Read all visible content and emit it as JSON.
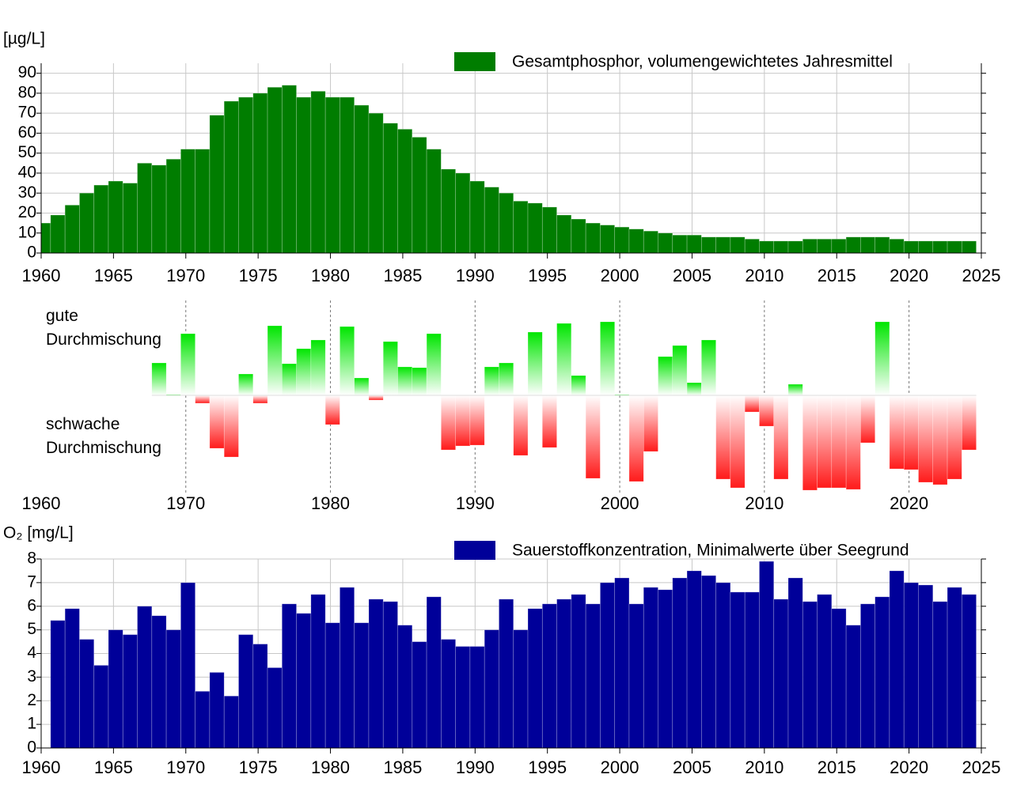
{
  "chart_data": [
    {
      "type": "bar",
      "y_label": "[µg/L]",
      "x": [
        1960,
        1961,
        1962,
        1963,
        1964,
        1965,
        1966,
        1967,
        1968,
        1969,
        1970,
        1971,
        1972,
        1973,
        1974,
        1975,
        1976,
        1977,
        1978,
        1979,
        1980,
        1981,
        1982,
        1983,
        1984,
        1985,
        1986,
        1987,
        1988,
        1989,
        1990,
        1991,
        1992,
        1993,
        1994,
        1995,
        1996,
        1997,
        1998,
        1999,
        2000,
        2001,
        2002,
        2003,
        2004,
        2005,
        2006,
        2007,
        2008,
        2009,
        2010,
        2011,
        2012,
        2013,
        2014,
        2015,
        2016,
        2017,
        2018,
        2019,
        2020,
        2021,
        2022,
        2023,
        2024
      ],
      "series": [
        {
          "name": "Gesamtphosphor, volumengewichtetes Jahresmittel",
          "color": "#007d00",
          "values": [
            15,
            19,
            24,
            30,
            34,
            36,
            35,
            45,
            44,
            47,
            52,
            52,
            69,
            76,
            78,
            80,
            83,
            84,
            78,
            81,
            78,
            78,
            74,
            70,
            65,
            62,
            58,
            52,
            42,
            40,
            36,
            33,
            30,
            26,
            25,
            23,
            19,
            17,
            15,
            14,
            13,
            12,
            11,
            10,
            9,
            9,
            8,
            8,
            8,
            7,
            6,
            6,
            6,
            7,
            7,
            7,
            8,
            8,
            8,
            7,
            6,
            6,
            6,
            6,
            6
          ]
        }
      ],
      "xlim": [
        1960,
        2025
      ],
      "xticks": [
        1960,
        1965,
        1970,
        1975,
        1980,
        1985,
        1990,
        1995,
        2000,
        2005,
        2010,
        2015,
        2020,
        2025
      ],
      "ylim": [
        0,
        95
      ],
      "yticks": [
        0,
        10,
        20,
        30,
        40,
        50,
        60,
        70,
        80,
        90
      ],
      "grid": true
    },
    {
      "type": "diverging_bar",
      "x": [
        1968,
        1969,
        1970,
        1971,
        1972,
        1973,
        1974,
        1975,
        1976,
        1977,
        1978,
        1979,
        1980,
        1981,
        1982,
        1983,
        1984,
        1985,
        1986,
        1987,
        1988,
        1989,
        1990,
        1991,
        1992,
        1993,
        1994,
        1995,
        1996,
        1997,
        1998,
        1999,
        2000,
        2001,
        2002,
        2003,
        2004,
        2005,
        2006,
        2007,
        2008,
        2009,
        2010,
        2011,
        2012,
        2013,
        2014,
        2015,
        2016,
        2017,
        2018,
        2019,
        2020,
        2021,
        2022,
        2023,
        2024
      ],
      "values": [
        0.41,
        0.01,
        0.78,
        -0.1,
        -0.67,
        -0.78,
        0.27,
        -0.1,
        0.88,
        0.4,
        0.59,
        0.7,
        -0.37,
        0.87,
        0.22,
        -0.06,
        0.68,
        0.36,
        0.35,
        0.78,
        -0.69,
        -0.64,
        -0.63,
        0.36,
        0.41,
        -0.76,
        0.8,
        -0.66,
        0.91,
        0.25,
        -1.05,
        0.93,
        0.01,
        -1.09,
        -0.71,
        0.49,
        0.63,
        0.16,
        0.7,
        -1.06,
        -1.17,
        -0.21,
        -0.39,
        -1.06,
        0.14,
        -1.2,
        -1.17,
        -1.17,
        -1.19,
        -0.6,
        0.93,
        -0.93,
        -0.94,
        -1.1,
        -1.13,
        -1.06,
        -0.69
      ],
      "positive_color": "#00e600",
      "negative_color": "#ff1a1a",
      "xlim": [
        1960,
        2025
      ],
      "xticks": [
        1960,
        1970,
        1980,
        1990,
        2000,
        2010,
        2020
      ],
      "ylim": [
        -1.3,
        1.0
      ],
      "annotations": [
        {
          "lines": [
            "gute",
            "Durchmischung"
          ]
        },
        {
          "lines": [
            "schwache",
            "Durchmischung"
          ]
        }
      ]
    },
    {
      "type": "bar",
      "y_label": "O₂ [mg/L]",
      "x": [
        1961,
        1962,
        1963,
        1964,
        1965,
        1966,
        1967,
        1968,
        1969,
        1970,
        1971,
        1972,
        1973,
        1974,
        1975,
        1976,
        1977,
        1978,
        1979,
        1980,
        1981,
        1982,
        1983,
        1984,
        1985,
        1986,
        1987,
        1988,
        1989,
        1990,
        1991,
        1992,
        1993,
        1994,
        1995,
        1996,
        1997,
        1998,
        1999,
        2000,
        2001,
        2002,
        2003,
        2004,
        2005,
        2006,
        2007,
        2008,
        2009,
        2010,
        2011,
        2012,
        2013,
        2014,
        2015,
        2016,
        2017,
        2018,
        2019,
        2020,
        2021,
        2022,
        2023,
        2024
      ],
      "series": [
        {
          "name": "Sauerstoffkonzentration, Minimalwerte über Seegrund",
          "color": "#000099",
          "values": [
            5.4,
            5.9,
            4.6,
            3.5,
            5.0,
            4.8,
            6.0,
            5.6,
            5.0,
            7.0,
            2.4,
            3.2,
            2.2,
            4.8,
            4.4,
            3.4,
            6.1,
            5.7,
            6.5,
            5.3,
            6.8,
            5.3,
            6.3,
            6.2,
            5.2,
            4.5,
            6.4,
            4.6,
            4.3,
            4.3,
            5.0,
            6.3,
            5.0,
            5.9,
            6.1,
            6.3,
            6.5,
            6.1,
            7.0,
            7.2,
            6.1,
            6.8,
            6.7,
            7.2,
            7.5,
            7.3,
            7.0,
            6.6,
            6.6,
            7.9,
            6.3,
            7.2,
            6.2,
            6.5,
            5.9,
            5.2,
            6.1,
            6.4,
            7.5,
            7.0,
            6.9,
            6.2,
            6.8,
            6.5
          ]
        }
      ],
      "xlim": [
        1960,
        2025
      ],
      "xticks": [
        1960,
        1965,
        1970,
        1975,
        1980,
        1985,
        1990,
        1995,
        2000,
        2005,
        2010,
        2015,
        2020,
        2025
      ],
      "ylim": [
        0,
        8
      ],
      "yticks": [
        0,
        1,
        2,
        3,
        4,
        5,
        6,
        7,
        8
      ],
      "grid": true
    }
  ]
}
